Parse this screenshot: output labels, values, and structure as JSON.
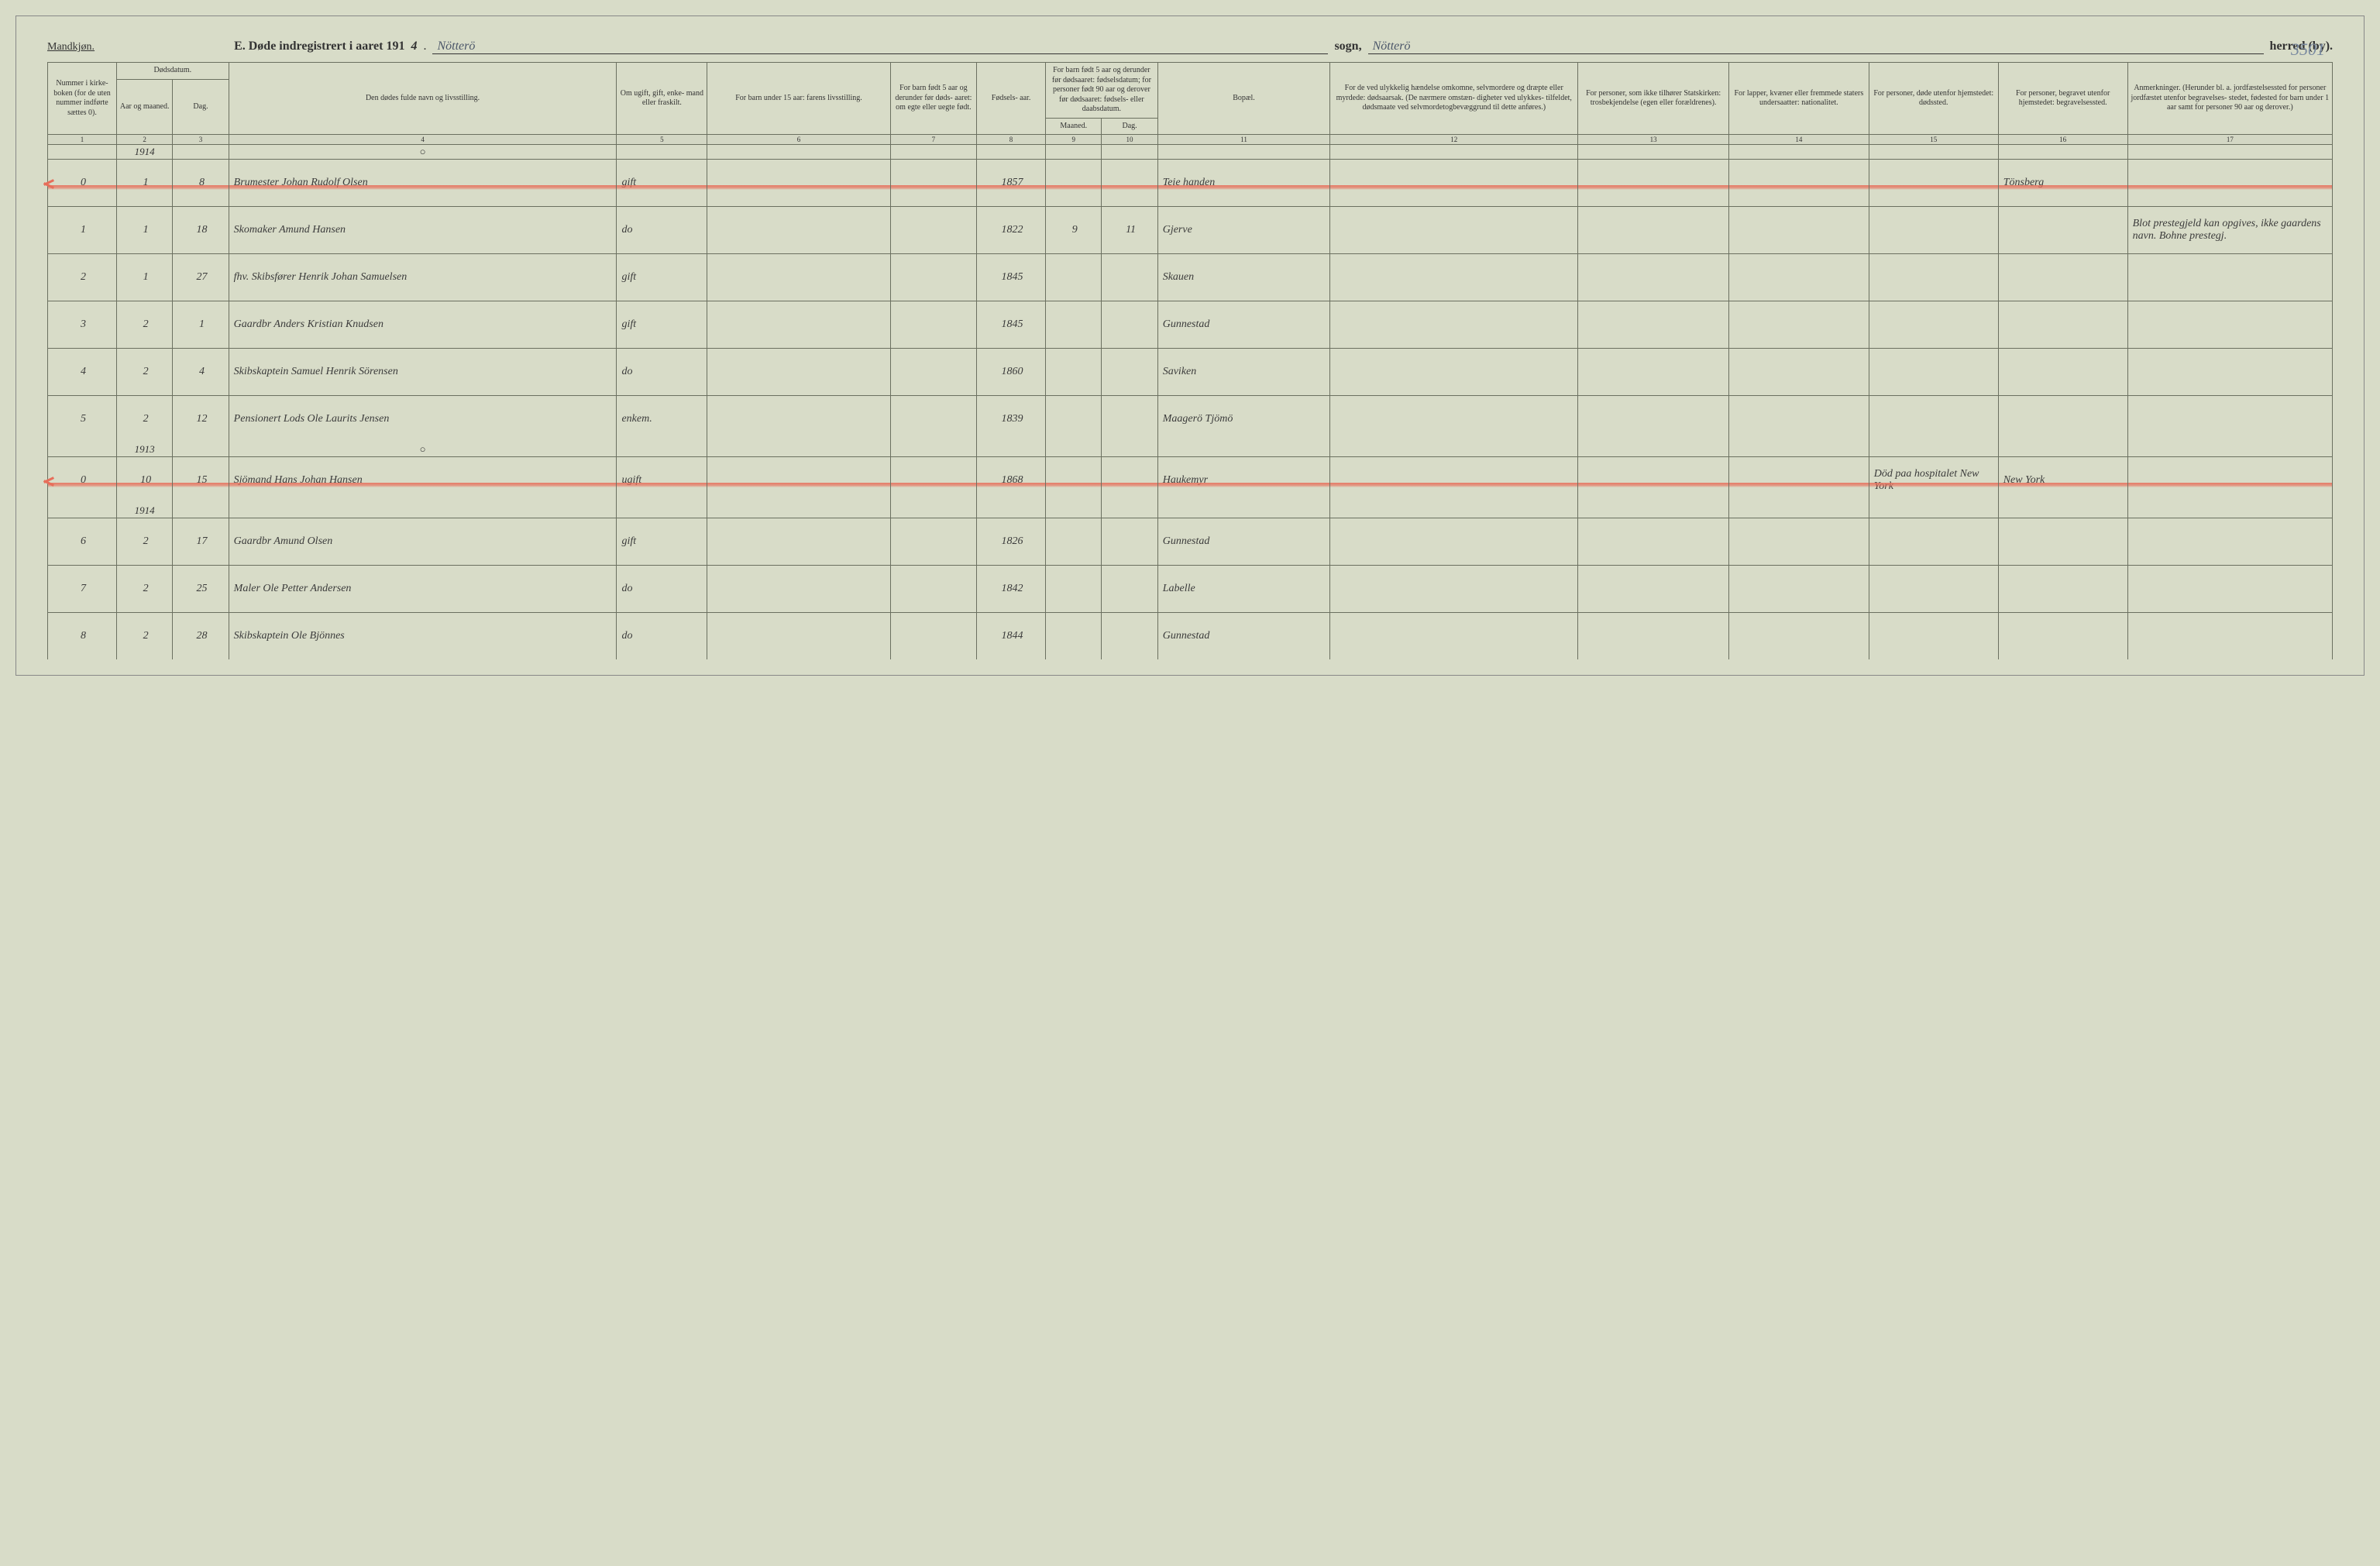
{
  "header": {
    "gender": "Mandkjøn.",
    "title_prefix": "E.  Døde indregistrert i aaret 191",
    "year_suffix": "4",
    "sogn_label": "sogn,",
    "herred_label": "herred (by).",
    "sogn_value": "Nötterö",
    "herred_value": "Nötterö",
    "page_number": "3501"
  },
  "columns": {
    "c1": "Nummer i kirke- boken (for de uten nummer indførte sættes 0).",
    "c2a": "Dødsdatum.",
    "c2_aar": "Aar og maaned.",
    "c2_dag": "Dag.",
    "c4": "Den dødes fulde navn og livsstilling.",
    "c5": "Om ugift, gift, enke- mand eller fraskilt.",
    "c6": "For barn under 15 aar: farens livsstilling.",
    "c7": "For barn født 5 aar og derunder før døds- aaret: om egte eller uegte født.",
    "c8": "Fødsels- aar.",
    "c9": "For barn født 5 aar og derunder før dødsaaret: fødselsdatum; for personer født 90 aar og derover før dødsaaret: fødsels- eller daabsdatum.",
    "c9_m": "Maaned.",
    "c9_d": "Dag.",
    "c11": "Bopæl.",
    "c12": "For de ved ulykkelig hændelse omkomne, selvmordere og dræpte eller myrdede: dødsaarsak. (De nærmere omstæn- digheter ved ulykkes- tilfeldet, dødsmaate ved selvmordetogbevæggrund til dette anføres.)",
    "c13": "For personer, som ikke tilhører Statskirken: trosbekjendelse (egen eller forældrenes).",
    "c14": "For lapper, kvæner eller fremmede staters undersaatter: nationalitet.",
    "c15": "For personer, døde utenfor hjemstedet: dødssted.",
    "c16": "For personer, begravet utenfor hjemstedet: begravelsessted.",
    "c17": "Anmerkninger. (Herunder bl. a. jordfæstelsessted for personer jordfæstet utenfor begravelses- stedet, fødested for barn under 1 aar samt for personer 90 aar og derover.)"
  },
  "colnums": [
    "1",
    "2",
    "3",
    "4",
    "5",
    "6",
    "7",
    "8",
    "9",
    "10",
    "11",
    "12",
    "13",
    "14",
    "15",
    "16",
    "17"
  ],
  "year_labels": {
    "y1914": "1914",
    "y1913": "1913"
  },
  "rows": [
    {
      "num": "0",
      "mon": "1",
      "dag": "8",
      "name": "Brumester Johan Rudolf Olsen",
      "stand": "gift",
      "faar": "1857",
      "bopael": "Teie handen",
      "c16": "Tönsberg",
      "c17": "",
      "strike": true,
      "tick": true
    },
    {
      "num": "1",
      "mon": "1",
      "dag": "18",
      "name": "Skomaker Amund Hansen",
      "stand": "do",
      "faar": "1822",
      "m": "9",
      "d": "11",
      "bopael": "Gjerve",
      "c17": "Blot prestegjeld kan opgives, ikke gaardens navn.  Bohne prestegj."
    },
    {
      "num": "2",
      "mon": "1",
      "dag": "27",
      "name": "fhv. Skibsfører Henrik Johan Samuelsen",
      "stand": "gift",
      "faar": "1845",
      "bopael": "Skauen"
    },
    {
      "num": "3",
      "mon": "2",
      "dag": "1",
      "name": "Gaardbr Anders Kristian Knudsen",
      "stand": "gift",
      "faar": "1845",
      "bopael": "Gunnestad"
    },
    {
      "num": "4",
      "mon": "2",
      "dag": "4",
      "name": "Skibskaptein Samuel Henrik Sörensen",
      "stand": "do",
      "faar": "1860",
      "bopael": "Saviken"
    },
    {
      "num": "5",
      "mon": "2",
      "dag": "12",
      "name": "Pensionert Lods Ole Laurits Jensen",
      "stand": "enkem.",
      "faar": "1839",
      "bopael": "Maagerö Tjömö"
    },
    {
      "num": "0",
      "mon": "10",
      "dag": "15",
      "name": "Sjömand Hans Johan Hansen",
      "stand": "ugift",
      "faar": "1868",
      "bopael": "Haukemyr",
      "c15": "Död paa hospitalet New York",
      "c16": "New York",
      "strike": true,
      "tick": true,
      "yearlabel": "y1913"
    },
    {
      "num": "6",
      "mon": "2",
      "dag": "17",
      "name": "Gaardbr Amund Olsen",
      "stand": "gift",
      "faar": "1826",
      "bopael": "Gunnestad",
      "yearlabel": "y1914"
    },
    {
      "num": "7",
      "mon": "2",
      "dag": "25",
      "name": "Maler Ole Petter Andersen",
      "stand": "do",
      "faar": "1842",
      "bopael": "Labelle"
    },
    {
      "num": "8",
      "mon": "2",
      "dag": "28",
      "name": "Skibskaptein Ole Bjönnes",
      "stand": "do",
      "faar": "1844",
      "bopael": "Gunnestad"
    }
  ],
  "style": {
    "background": "#d8dcc8",
    "border_color": "#6b7060",
    "ink": "#3b3b3b",
    "red": "#e76e5a",
    "col_widths_pct": [
      3.2,
      2.6,
      2.6,
      18.0,
      4.2,
      8.5,
      4.0,
      3.2,
      2.6,
      2.6,
      8.0,
      11.5,
      7.0,
      6.5,
      6.0,
      6.0,
      9.5
    ]
  }
}
